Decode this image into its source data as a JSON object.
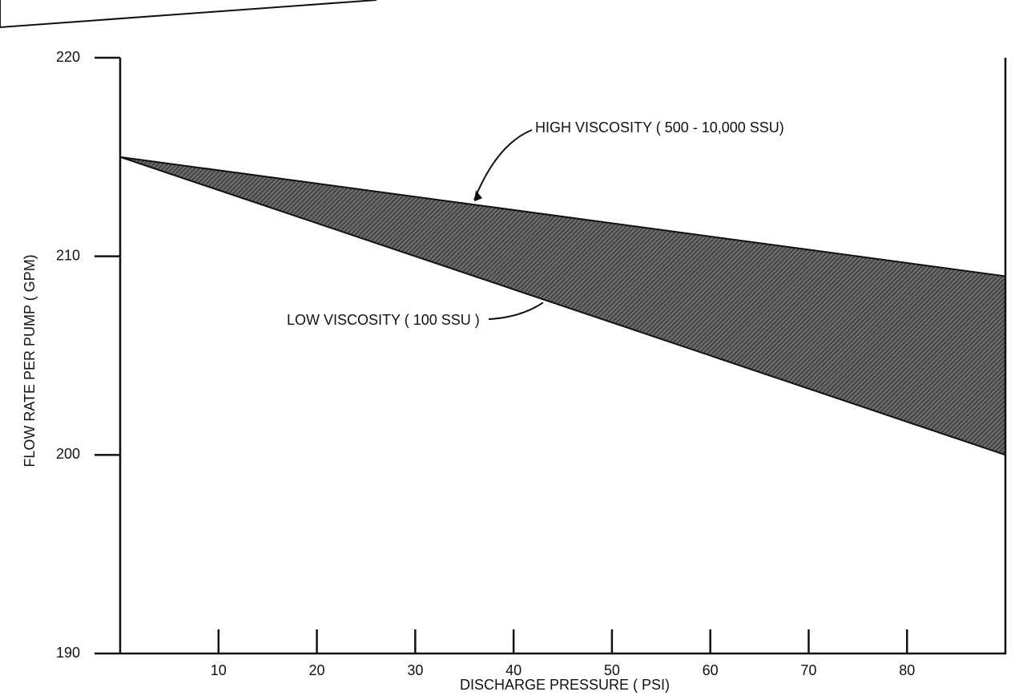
{
  "chart_data": {
    "type": "band",
    "x_label": "DISCHARGE PRESSURE ( PSI)",
    "y_label": "FLOW RATE PER PUMP ( GPM)",
    "x": [
      0,
      90
    ],
    "series": [
      {
        "name": "HIGH VISCOSITY ( 500 - 10,000 SSU)",
        "color": "#111111",
        "values": [
          215,
          209
        ]
      },
      {
        "name": "LOW VISCOSITY ( 100 SSU )",
        "color": "#111111",
        "values": [
          215,
          200
        ]
      }
    ],
    "xlim": [
      0,
      90
    ],
    "ylim": [
      190,
      220
    ],
    "xticks": [
      10,
      20,
      30,
      40,
      50,
      60,
      70,
      80
    ],
    "yticks": [
      190,
      200,
      210,
      220
    ],
    "grid": false
  }
}
